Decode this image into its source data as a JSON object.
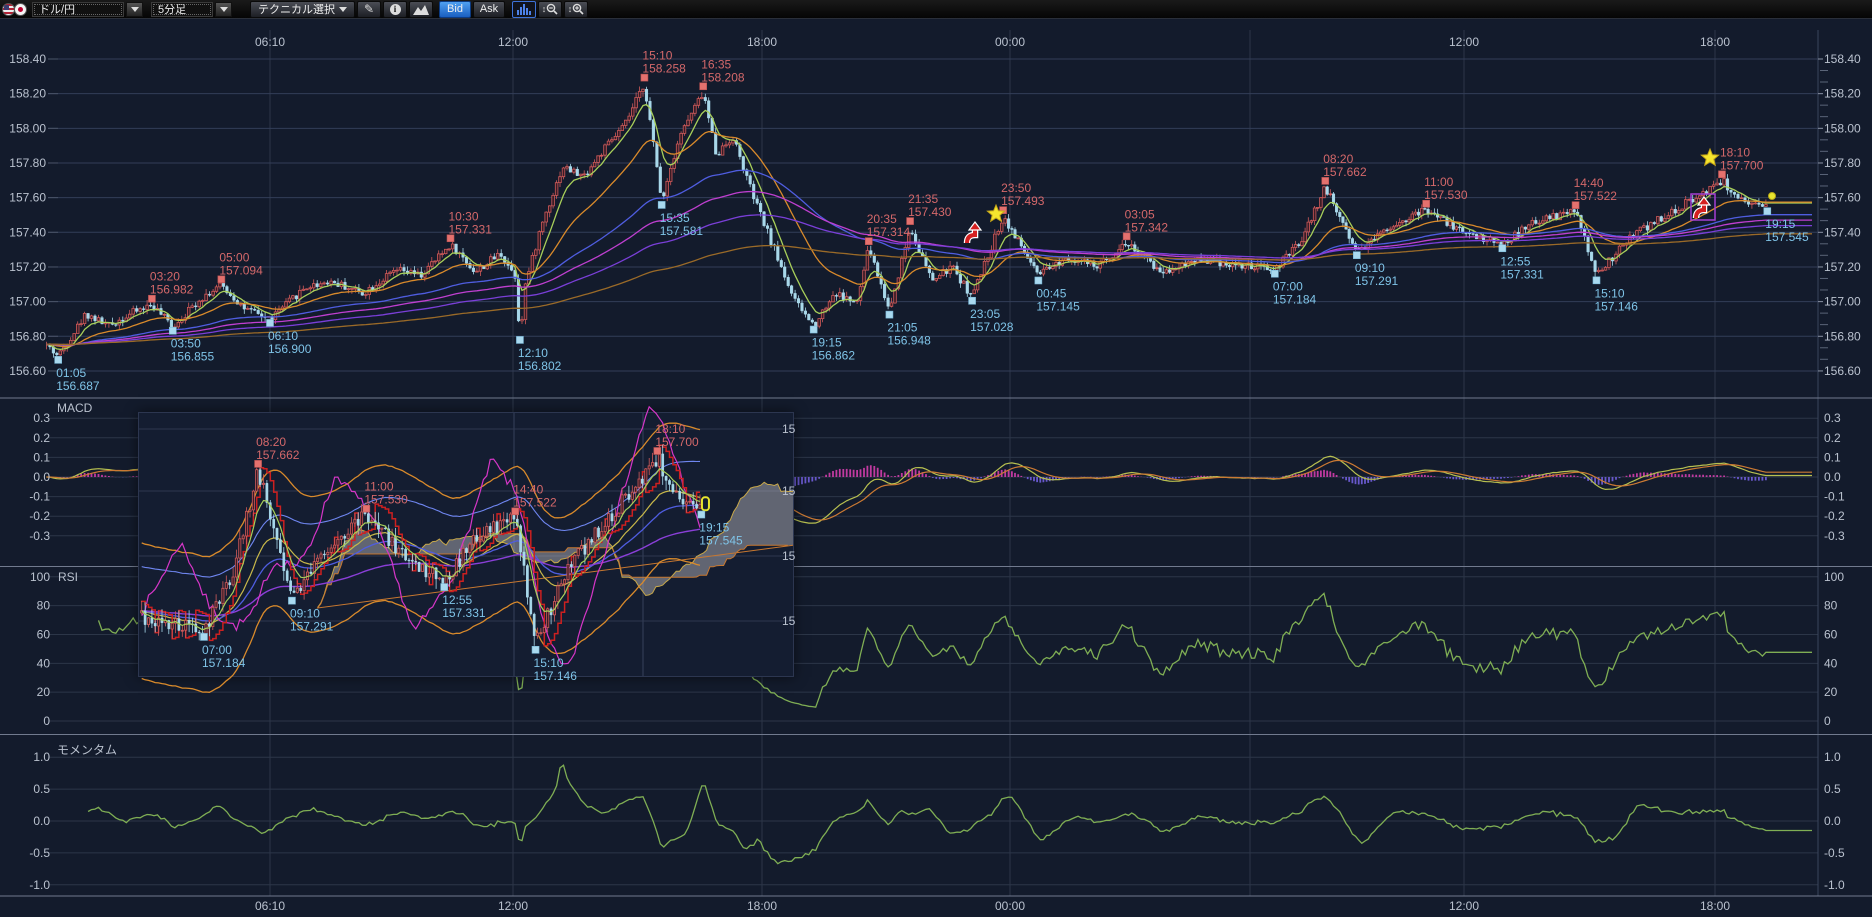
{
  "toolbar": {
    "pair_label": "ドル/円",
    "timeframe_label": "5分足",
    "technical_label": "テクニカル選択",
    "bid_label": "Bid",
    "ask_label": "Ask",
    "active_blue": "#2a7fe0"
  },
  "chart_data": {
    "type": "candlestick",
    "pair": "ドル/円",
    "timeframe": "5分足",
    "x_axis": {
      "top_labels": [
        {
          "label": "06:10",
          "x": 270
        },
        {
          "label": "12:00",
          "x": 513
        },
        {
          "label": "18:00",
          "x": 762
        },
        {
          "label": "00:00",
          "x": 1010
        },
        {
          "label": "",
          "x": 1250
        },
        {
          "label": "12:00",
          "x": 1464
        },
        {
          "label": "18:00",
          "x": 1715
        }
      ],
      "bottom_labels": [
        {
          "label": "06:10",
          "x": 270
        },
        {
          "label": "12:00",
          "x": 513
        },
        {
          "label": "18:00",
          "x": 762
        },
        {
          "label": "00:00",
          "x": 1010
        },
        {
          "label": "12:00",
          "x": 1464
        },
        {
          "label": "18:00",
          "x": 1715
        }
      ]
    },
    "main": {
      "y_ticks": [
        "158.40",
        "158.20",
        "158.00",
        "157.80",
        "157.60",
        "157.40",
        "157.20",
        "157.00",
        "156.80",
        "156.60"
      ],
      "y_top_price": 158.4,
      "y_step": 0.2,
      "price_path": [
        [
          0.8,
          156.75
        ],
        [
          1.083,
          156.687
        ],
        [
          1.75,
          156.93
        ],
        [
          2.3,
          156.86
        ],
        [
          2.9,
          156.94
        ],
        [
          3.333,
          156.982
        ],
        [
          3.833,
          156.855
        ],
        [
          4.5,
          157.02
        ],
        [
          5.0,
          157.094
        ],
        [
          5.6,
          156.95
        ],
        [
          6.167,
          156.9
        ],
        [
          7.0,
          157.08
        ],
        [
          7.6,
          157.12
        ],
        [
          8.4,
          157.05
        ],
        [
          9.2,
          157.18
        ],
        [
          9.8,
          157.15
        ],
        [
          10.5,
          157.331
        ],
        [
          11.1,
          157.17
        ],
        [
          11.7,
          157.28
        ],
        [
          12.05,
          157.15
        ],
        [
          12.167,
          156.802
        ],
        [
          12.3,
          157.1
        ],
        [
          12.7,
          157.45
        ],
        [
          13.2,
          157.78
        ],
        [
          13.7,
          157.72
        ],
        [
          14.2,
          157.88
        ],
        [
          14.7,
          158.02
        ],
        [
          15.167,
          158.258
        ],
        [
          15.583,
          157.581
        ],
        [
          16.0,
          157.95
        ],
        [
          16.583,
          158.208
        ],
        [
          16.9,
          157.85
        ],
        [
          17.3,
          157.95
        ],
        [
          17.8,
          157.6
        ],
        [
          18.3,
          157.3
        ],
        [
          18.8,
          157.0
        ],
        [
          19.25,
          156.862
        ],
        [
          19.75,
          157.05
        ],
        [
          20.3,
          156.99
        ],
        [
          20.583,
          157.314
        ],
        [
          21.083,
          156.948
        ],
        [
          21.583,
          157.43
        ],
        [
          22.1,
          157.12
        ],
        [
          22.6,
          157.2
        ],
        [
          23.083,
          157.028
        ],
        [
          23.833,
          157.493
        ],
        [
          24.75,
          157.145
        ],
        [
          25.5,
          157.26
        ],
        [
          26.3,
          157.2
        ],
        [
          27.083,
          157.342
        ],
        [
          28.0,
          157.17
        ],
        [
          29.0,
          157.25
        ],
        [
          30.0,
          157.21
        ],
        [
          31.0,
          157.184
        ],
        [
          31.7,
          157.35
        ],
        [
          32.333,
          157.662
        ],
        [
          33.167,
          157.291
        ],
        [
          34.0,
          157.43
        ],
        [
          35.0,
          157.53
        ],
        [
          36.0,
          157.4
        ],
        [
          36.917,
          157.331
        ],
        [
          37.7,
          157.46
        ],
        [
          38.667,
          157.522
        ],
        [
          39.167,
          157.146
        ],
        [
          40.0,
          157.38
        ],
        [
          41.0,
          157.52
        ],
        [
          42.167,
          157.7
        ],
        [
          42.75,
          157.55
        ],
        [
          43.25,
          157.545
        ]
      ],
      "highs": [
        {
          "time": "03:20",
          "price": "156.982",
          "t": 3.333
        },
        {
          "time": "05:00",
          "price": "157.094",
          "t": 5.0
        },
        {
          "time": "10:30",
          "price": "157.331",
          "t": 10.5
        },
        {
          "time": "15:10",
          "price": "158.258",
          "t": 15.167
        },
        {
          "time": "16:35",
          "price": "158.208",
          "t": 16.583
        },
        {
          "time": "20:35",
          "price": "157.314",
          "t": 20.583
        },
        {
          "time": "21:35",
          "price": "157.430",
          "t": 21.583
        },
        {
          "time": "23:50",
          "price": "157.493",
          "t": 23.833
        },
        {
          "time": "03:05",
          "price": "157.342",
          "t": 27.083
        },
        {
          "time": "08:20",
          "price": "157.662",
          "t": 32.333
        },
        {
          "time": "11:00",
          "price": "157.530",
          "t": 35.0
        },
        {
          "time": "14:40",
          "price": "157.522",
          "t": 38.667
        },
        {
          "time": "18:10",
          "price": "157.700",
          "t": 42.167
        }
      ],
      "lows": [
        {
          "time": "01:05",
          "price": "156.687",
          "t": 1.083
        },
        {
          "time": "03:50",
          "price": "156.855",
          "t": 3.833
        },
        {
          "time": "06:10",
          "price": "156.900",
          "t": 6.167
        },
        {
          "time": "12:10",
          "price": "156.802",
          "t": 12.167
        },
        {
          "time": "15:35",
          "price": "157.581",
          "t": 15.583
        },
        {
          "time": "19:15",
          "price": "156.862",
          "t": 19.25
        },
        {
          "time": "21:05",
          "price": "156.948",
          "t": 21.083
        },
        {
          "time": "23:05",
          "price": "157.028",
          "t": 23.083
        },
        {
          "time": "00:45",
          "price": "157.145",
          "t": 24.75
        },
        {
          "time": "07:00",
          "price": "157.184",
          "t": 31.0
        },
        {
          "time": "09:10",
          "price": "157.291",
          "t": 33.167
        },
        {
          "time": "12:55",
          "price": "157.331",
          "t": 36.917
        },
        {
          "time": "15:10",
          "price": "157.146",
          "t": 39.167
        },
        {
          "time": "19:15",
          "price": "157.545",
          "t": 43.25
        }
      ],
      "stars": [
        {
          "x": 996,
          "y": 214
        },
        {
          "x": 1710,
          "y": 158
        }
      ],
      "arrows": [
        {
          "x": 974,
          "y": 233,
          "boxed": false
        },
        {
          "x": 1703,
          "y": 208,
          "boxed": true
        }
      ],
      "latest_dot": {
        "x": 1772,
        "y": 196
      }
    },
    "macd": {
      "label": "MACD",
      "ticks": [
        "0.3",
        "0.2",
        "0.1",
        "0.0",
        "-0.1",
        "-0.2",
        "-0.3"
      ]
    },
    "rsi": {
      "label": "RSI",
      "ticks": [
        "100",
        "80",
        "60",
        "40",
        "20",
        "0"
      ]
    },
    "momentum": {
      "label": "モメンタム",
      "ticks": [
        "1.0",
        "0.5",
        "0.0",
        "-0.5",
        "-1.0"
      ]
    },
    "inset": {
      "highs": [
        {
          "time": "08:20",
          "price": "157.662",
          "t": 32.333
        },
        {
          "time": "11:00",
          "price": "157.530",
          "t": 35.0
        },
        {
          "time": "14:40",
          "price": "157.522",
          "t": 38.667
        },
        {
          "time": "18:10",
          "price": "157.700",
          "t": 42.167
        }
      ],
      "lows": [
        {
          "time": "07:00",
          "price": "157.184",
          "t": 31.0
        },
        {
          "time": "09:10",
          "price": "157.291",
          "t": 33.167
        },
        {
          "time": "12:55",
          "price": "157.331",
          "t": 36.917
        },
        {
          "time": "15:10",
          "price": "157.146",
          "t": 39.167
        },
        {
          "time": "19:15",
          "price": "157.545",
          "t": 43.25
        }
      ],
      "right_labels": [
        "15",
        "15",
        "15",
        "15"
      ]
    }
  }
}
